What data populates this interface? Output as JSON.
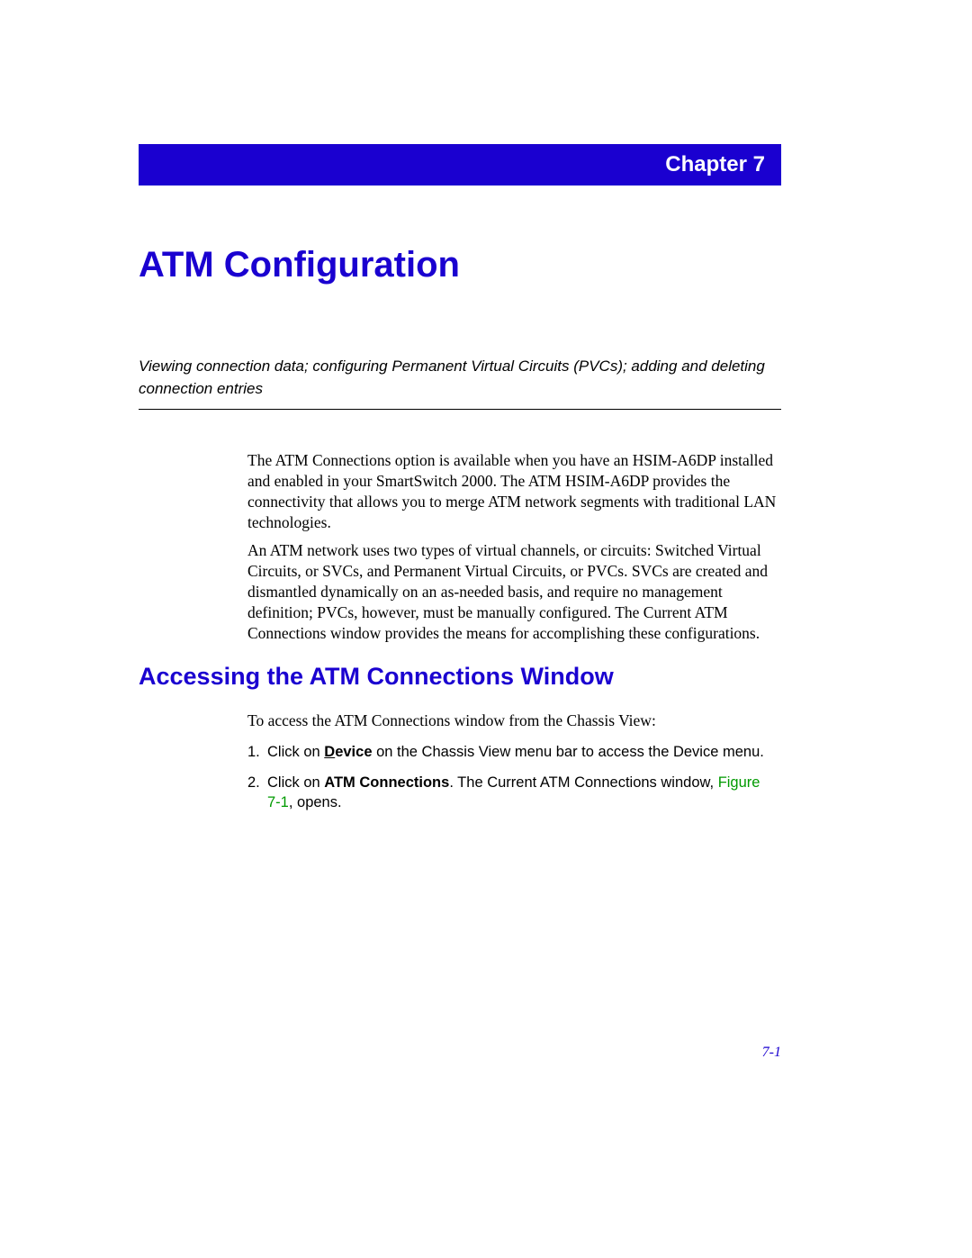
{
  "chapter_bar": {
    "label": "Chapter 7",
    "bg_color": "#1a00d0",
    "text_color": "#ffffff"
  },
  "title": "ATM Configuration",
  "summary": "Viewing connection data; configuring Permanent Virtual Circuits (PVCs); adding and deleting connection entries",
  "paragraphs": {
    "p1": "The ATM Connections option is available when you have an HSIM-A6DP installed and enabled in your SmartSwitch 2000. The ATM HSIM-A6DP provides the connectivity that allows you to merge ATM network segments with traditional LAN technologies.",
    "p2": "An ATM network uses two types of virtual channels, or circuits: Switched Virtual Circuits, or SVCs, and Permanent Virtual Circuits, or PVCs. SVCs are created and dismantled dynamically on an as-needed basis, and require no management definition; PVCs, however, must be manually configured. The Current ATM Connections window provides the means for accomplishing these configurations."
  },
  "section_heading": "Accessing the ATM Connections Window",
  "access_line": "To access the ATM Connections window from the Chassis View:",
  "steps": {
    "s1": {
      "num": "1.",
      "pre": "Click on ",
      "bold_underline_char": "D",
      "bold_rest": "evice",
      "post": " on the Chassis View menu bar to access the Device menu."
    },
    "s2": {
      "num": "2.",
      "pre": "Click on ",
      "bold": "ATM Connections",
      "mid": ". The Current ATM Connections window, ",
      "figref": "Figure 7-1",
      "post": ", opens."
    }
  },
  "footer": "7-1",
  "colors": {
    "heading": "#1a00d0",
    "figref": "#009a00",
    "text": "#000000"
  }
}
